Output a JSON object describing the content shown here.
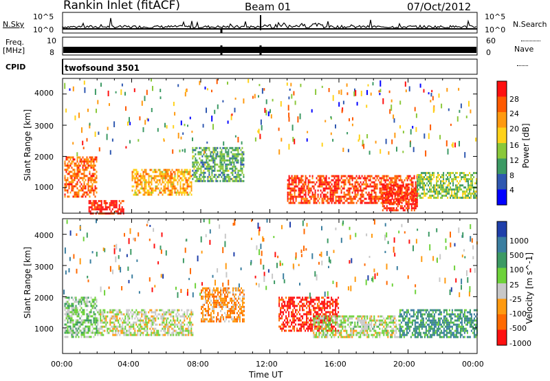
{
  "header": {
    "station": "Rankin Inlet (fitACF)",
    "beam": "Beam 01",
    "date": "07/Oct/2012"
  },
  "top_panels": {
    "nsky_label": "N.Sky",
    "nsearch_label": "N.Search",
    "freq_label": "Freq.",
    "freq_unit": "[MHz]",
    "nave_label": "Nave",
    "cpid_label": "CPID",
    "cpid_value": "twofsound 3501",
    "nsky_ticks": [
      "10^5",
      "10^0"
    ],
    "nsearch_ticks": [
      "10^5",
      "10^0"
    ],
    "freq_ticks": [
      "10",
      "8"
    ],
    "nave_ticks": [
      "60",
      "0"
    ]
  },
  "axis": {
    "xlabel": "Time UT",
    "x_ticks": [
      "00:00",
      "04:00",
      "08:00",
      "12:00",
      "16:00",
      "20:00",
      "00:00"
    ],
    "ylabel": "Slant Range [km]",
    "y_ticks": [
      "1000",
      "2000",
      "3000",
      "4000"
    ]
  },
  "power_bar": {
    "label": "Power [dB]",
    "ticks": [
      "28",
      "24",
      "20",
      "16",
      "12",
      "8",
      "4"
    ],
    "colors": [
      "#ff1010",
      "#ff5a00",
      "#ff9a10",
      "#ffd21a",
      "#8ac83a",
      "#3c9a64",
      "#2f58b0",
      "#0000ff"
    ]
  },
  "velocity_bar": {
    "label": "Velocity [m s^-1]",
    "ticks": [
      "1000",
      "500",
      "100",
      "25",
      "-25",
      "-100",
      "-500",
      "-1000"
    ],
    "colors": [
      "#1f3faa",
      "#3a7ea0",
      "#3c9a64",
      "#6ed23a",
      "#c8c8c8",
      "#ff9a10",
      "#ff6a00",
      "#ff1010"
    ]
  },
  "chart_data": [
    {
      "type": "heatmap",
      "name": "power",
      "x_range_hours": [
        0,
        24
      ],
      "y_range_km": [
        180,
        4500
      ],
      "colorbar": [
        4,
        28
      ],
      "echo_regions": [
        {
          "t0": 0.1,
          "t1": 2.0,
          "r0": 700,
          "r1": 2000,
          "level": 24
        },
        {
          "t0": 1.5,
          "t1": 3.5,
          "r0": 150,
          "r1": 600,
          "level": 28
        },
        {
          "t0": 4.0,
          "t1": 7.5,
          "r0": 800,
          "r1": 1600,
          "level": 20
        },
        {
          "t0": 7.5,
          "t1": 10.5,
          "r0": 1200,
          "r1": 2300,
          "level": 12
        },
        {
          "t0": 13.0,
          "t1": 20.5,
          "r0": 500,
          "r1": 1400,
          "level": 26
        },
        {
          "t0": 18.5,
          "t1": 20.5,
          "r0": 300,
          "r1": 1100,
          "level": 28
        },
        {
          "t0": 20.5,
          "t1": 24.0,
          "r0": 700,
          "r1": 1500,
          "level": 14
        }
      ]
    },
    {
      "type": "heatmap",
      "name": "velocity",
      "x_range_hours": [
        0,
        24
      ],
      "y_range_km": [
        180,
        4500
      ],
      "colorbar": [
        -1000,
        1000
      ],
      "echo_regions": [
        {
          "t0": 0.1,
          "t1": 2.0,
          "r0": 700,
          "r1": 2000,
          "level": 100
        },
        {
          "t0": 2.0,
          "t1": 7.5,
          "r0": 800,
          "r1": 1600,
          "level": -100
        },
        {
          "t0": 8.0,
          "t1": 10.5,
          "r0": 1200,
          "r1": 2300,
          "level": -500
        },
        {
          "t0": 12.5,
          "t1": 16.0,
          "r0": 900,
          "r1": 2000,
          "level": -1000
        },
        {
          "t0": 14.5,
          "t1": 19.5,
          "r0": 700,
          "r1": 1400,
          "level": -25
        },
        {
          "t0": 19.5,
          "t1": 24.0,
          "r0": 700,
          "r1": 1600,
          "level": 500
        }
      ]
    }
  ]
}
